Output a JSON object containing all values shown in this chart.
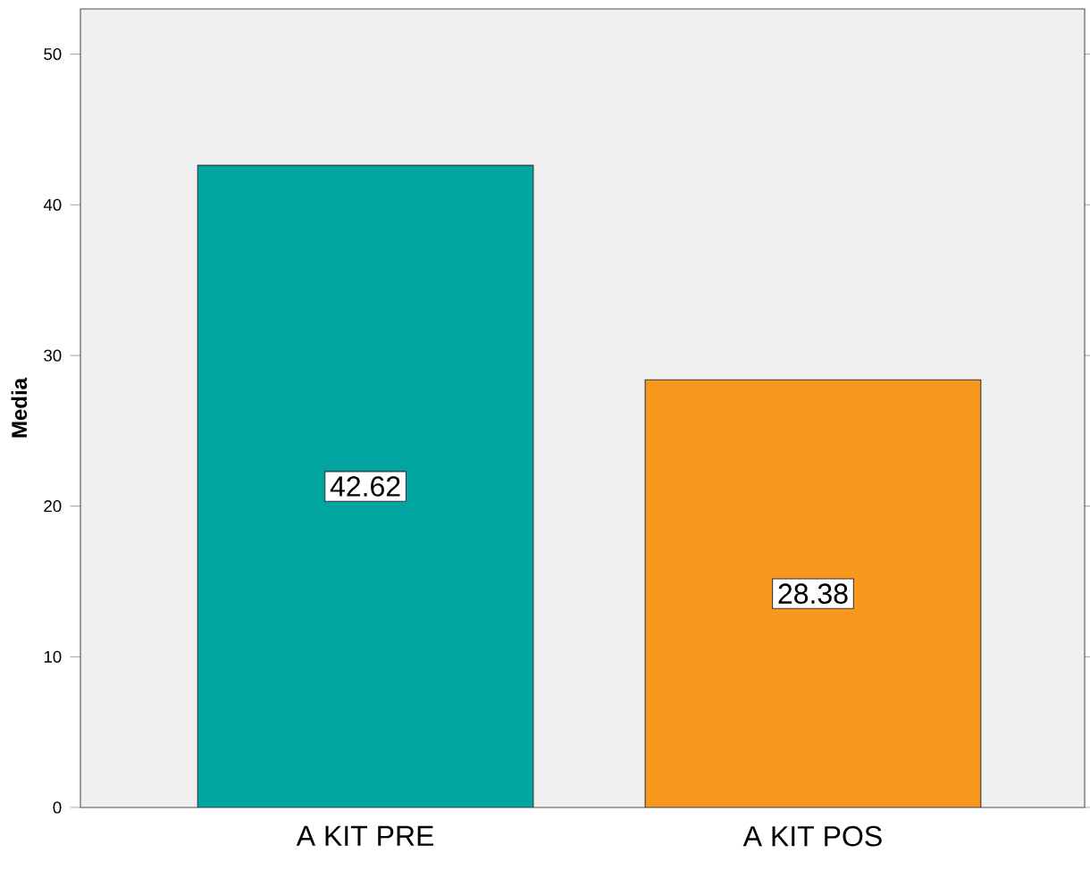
{
  "chart_data": {
    "type": "bar",
    "ylabel": "Media",
    "categories": [
      "A KIT PRE",
      "A KIT POS"
    ],
    "values": [
      42.62,
      28.38
    ],
    "colors": [
      "#00a59f",
      "#f7971e"
    ],
    "ylim": [
      0,
      53
    ],
    "yticks": [
      0,
      10,
      20,
      30,
      40,
      50
    ],
    "data_labels": true,
    "grid": false
  }
}
